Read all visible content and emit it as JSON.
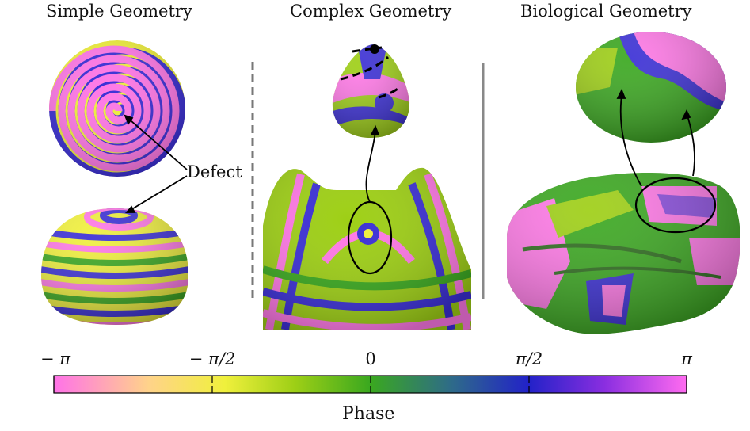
{
  "panels": {
    "simple_title": "Simple Geometry",
    "complex_title": "Complex Geometry",
    "biological_title": "Biological Geometry"
  },
  "annotation": {
    "defect_label": "Defect"
  },
  "colorbar": {
    "label": "Phase",
    "ticks": [
      "− π",
      "− π/2",
      "0",
      "π/2",
      "π"
    ],
    "colors": [
      "#ff72e8",
      "#ffd38a",
      "#f0f03c",
      "#9ecf16",
      "#3aa81f",
      "#2e6a8a",
      "#2222c8",
      "#8a2ee0",
      "#ff6bf0"
    ]
  }
}
